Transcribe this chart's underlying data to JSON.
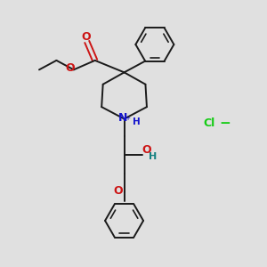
{
  "background_color": "#e0e0e0",
  "bond_color": "#1a1a1a",
  "N_color": "#1414cc",
  "O_color": "#cc1414",
  "Cl_color": "#14cc14",
  "H_color": "#148080",
  "figsize": [
    3.0,
    3.0
  ],
  "dpi": 100,
  "xlim": [
    0,
    10
  ],
  "ylim": [
    0,
    10
  ]
}
